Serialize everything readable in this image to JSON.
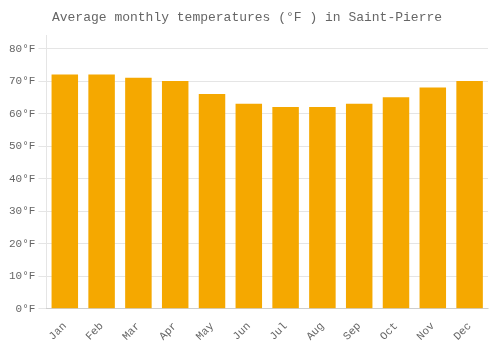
{
  "chart_data": {
    "type": "bar",
    "title": "Average monthly temperatures (°F ) in Saint-Pierre",
    "categories": [
      "Jan",
      "Feb",
      "Mar",
      "Apr",
      "May",
      "Jun",
      "Jul",
      "Aug",
      "Sep",
      "Oct",
      "Nov",
      "Dec"
    ],
    "values": [
      72,
      72,
      71,
      70,
      66,
      63,
      62,
      62,
      63,
      65,
      68,
      70
    ],
    "color": "#F5A800",
    "ylim": [
      0,
      84
    ],
    "yticks": [
      {
        "value": 0,
        "label": "0°F"
      },
      {
        "value": 10,
        "label": "10°F"
      },
      {
        "value": 20,
        "label": "20°F"
      },
      {
        "value": 30,
        "label": "30°F"
      },
      {
        "value": 40,
        "label": "40°F"
      },
      {
        "value": 50,
        "label": "50°F"
      },
      {
        "value": 60,
        "label": "60°F"
      },
      {
        "value": 70,
        "label": "70°F"
      },
      {
        "value": 80,
        "label": "80°F"
      }
    ],
    "grid": true
  }
}
